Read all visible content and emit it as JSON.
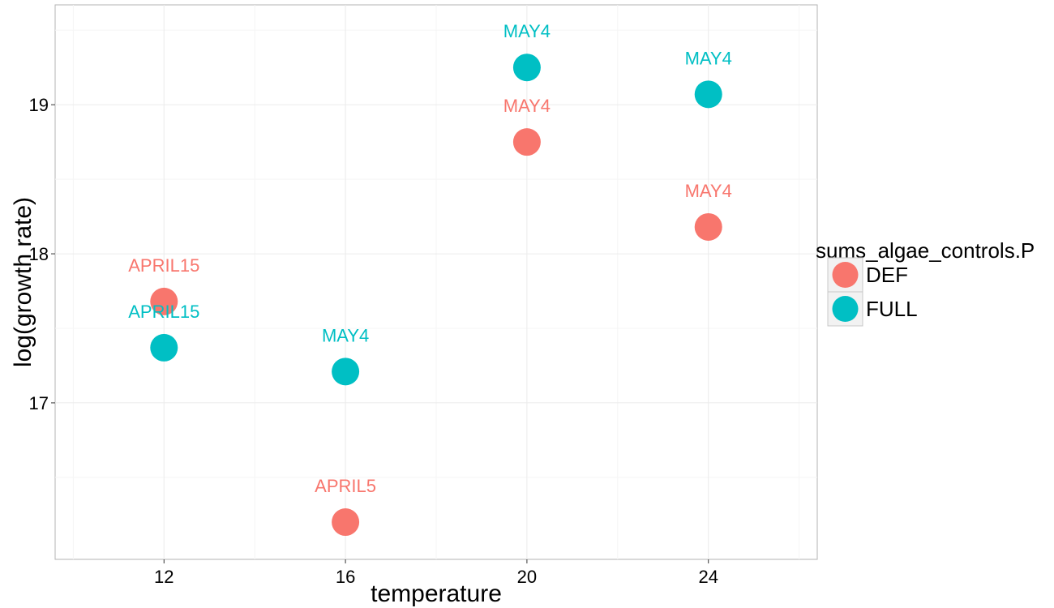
{
  "chart_data": {
    "type": "scatter",
    "title": "",
    "xlabel": "temperature",
    "ylabel": "log(growth rate)",
    "xlim": [
      9.6,
      26.4
    ],
    "ylim": [
      15.95,
      19.67
    ],
    "x_ticks": [
      12,
      16,
      20,
      24
    ],
    "y_ticks": [
      17,
      18,
      19
    ],
    "grid": true,
    "legend_position": "right",
    "legend_title": "sums_algae_controls.P",
    "series": [
      {
        "name": "DEF",
        "color": "#f8766d",
        "points": [
          {
            "x": 12,
            "y": 17.68,
            "label": "APRIL15"
          },
          {
            "x": 16,
            "y": 16.2,
            "label": "APRIL5"
          },
          {
            "x": 20,
            "y": 18.75,
            "label": "MAY4"
          },
          {
            "x": 24,
            "y": 18.18,
            "label": "MAY4"
          }
        ]
      },
      {
        "name": "FULL",
        "color": "#00bfc4",
        "points": [
          {
            "x": 12,
            "y": 17.37,
            "label": "APRIL15"
          },
          {
            "x": 16,
            "y": 17.21,
            "label": "MAY4"
          },
          {
            "x": 20,
            "y": 19.25,
            "label": "MAY4"
          },
          {
            "x": 24,
            "y": 19.07,
            "label": "MAY4"
          }
        ]
      }
    ]
  }
}
